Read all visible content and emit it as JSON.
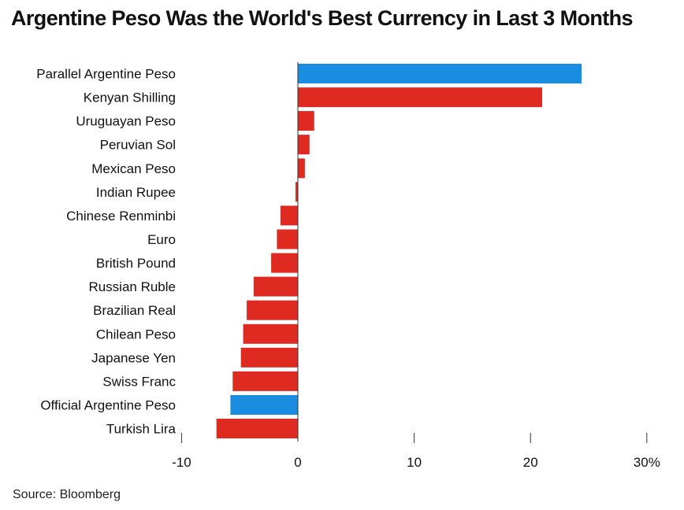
{
  "chart_data": {
    "type": "bar",
    "orientation": "horizontal",
    "title": "Argentine Peso Was the World's Best Currency in Last 3 Months",
    "source": "Source: Bloomberg",
    "xlabel": "",
    "ylabel": "",
    "xlim": [
      -10,
      30
    ],
    "x_ticks": [
      -10,
      0,
      10,
      20,
      30
    ],
    "x_tick_labels": [
      "-10",
      "0",
      "10",
      "20",
      "30%"
    ],
    "grid": false,
    "legend": "none",
    "colors": {
      "highlight": "#1a8de0",
      "default": "#de2a20"
    },
    "categories": [
      "Parallel Argentine Peso",
      "Kenyan Shilling",
      "Uruguayan Peso",
      "Peruvian Sol",
      "Mexican Peso",
      "Indian Rupee",
      "Chinese Renminbi",
      "Euro",
      "British Pound",
      "Russian Ruble",
      "Brazilian Real",
      "Chilean Peso",
      "Japanese Yen",
      "Swiss Franc",
      "Official Argentine Peso",
      "Turkish Lira"
    ],
    "values": [
      24.4,
      21.0,
      1.4,
      1.0,
      0.6,
      -0.2,
      -1.5,
      -1.8,
      -2.3,
      -3.8,
      -4.4,
      -4.7,
      -4.9,
      -5.6,
      -5.8,
      -7.0
    ],
    "highlighted": [
      "Parallel Argentine Peso",
      "Official Argentine Peso"
    ]
  }
}
